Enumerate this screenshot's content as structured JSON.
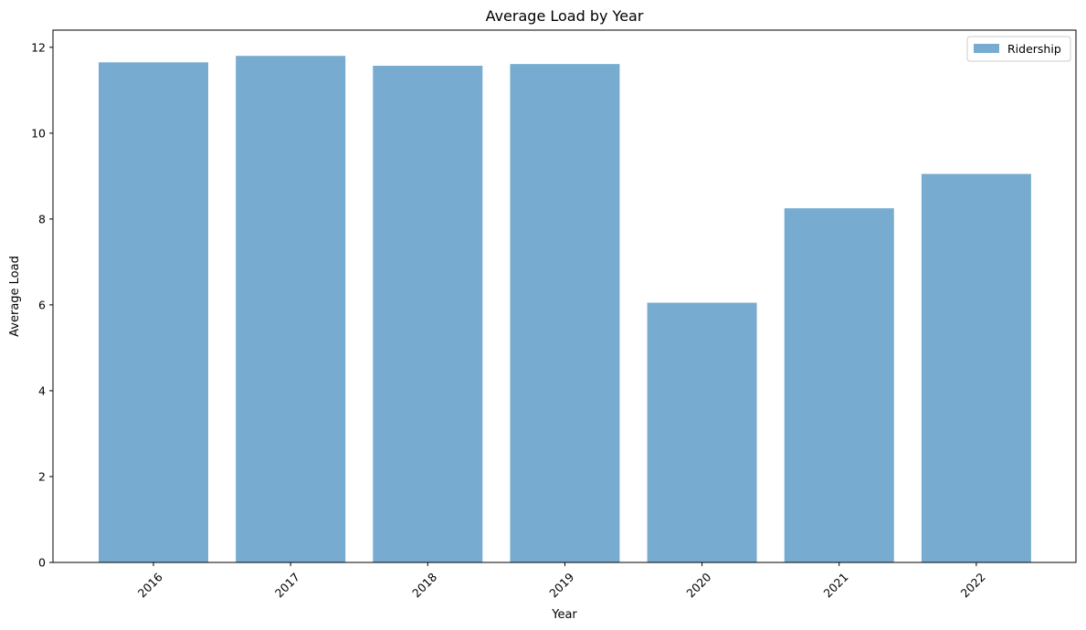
{
  "chart_data": {
    "type": "bar",
    "title": "Average Load by Year",
    "xlabel": "Year",
    "ylabel": "Average Load",
    "categories": [
      "2016",
      "2017",
      "2018",
      "2019",
      "2020",
      "2021",
      "2022"
    ],
    "series": [
      {
        "name": "Ridership",
        "values": [
          11.65,
          11.8,
          11.57,
          11.61,
          6.05,
          8.25,
          9.05
        ],
        "color": "#77acd0"
      }
    ],
    "ylim": [
      0,
      12.4
    ],
    "yticks": [
      0,
      2,
      4,
      6,
      8,
      10,
      12
    ],
    "xtick_rotation": 45,
    "grid": false,
    "legend": {
      "position": "top-right",
      "entries": [
        "Ridership"
      ]
    }
  }
}
